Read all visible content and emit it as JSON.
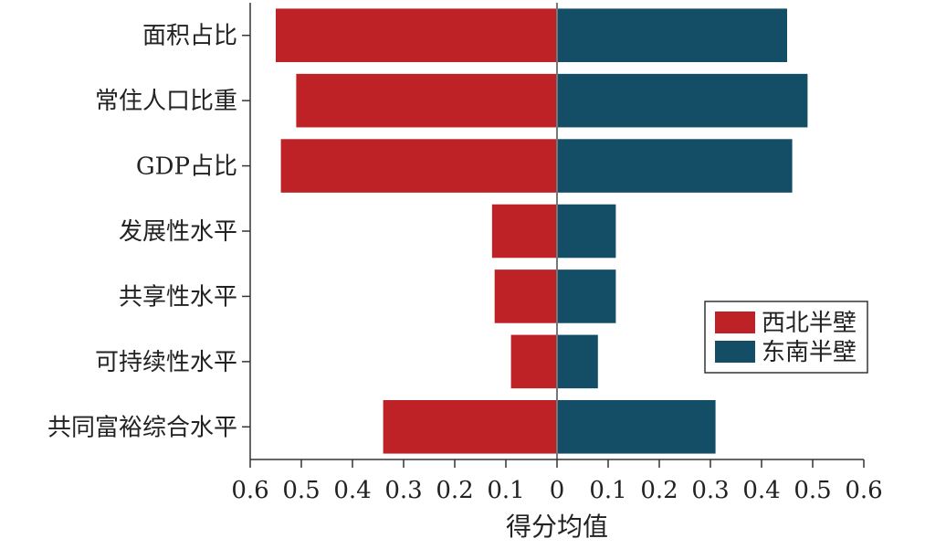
{
  "chart_data": {
    "type": "bar",
    "orientation": "horizontal-diverging",
    "categories": [
      "面积占比",
      "常住人口比重",
      "GDP占比",
      "发展性水平",
      "共享性水平",
      "可持续性水平",
      "共同富裕综合水平"
    ],
    "series": [
      {
        "name": "西北半壁",
        "side": "left",
        "color": "#be2126",
        "values": [
          0.55,
          0.51,
          0.54,
          0.127,
          0.122,
          0.09,
          0.34
        ]
      },
      {
        "name": "东南半壁",
        "side": "right",
        "color": "#134e66",
        "values": [
          0.45,
          0.49,
          0.46,
          0.115,
          0.115,
          0.08,
          0.31
        ]
      }
    ],
    "xlabel": "得分均值",
    "xlim": [
      -0.6,
      0.6
    ],
    "tick_labels": [
      "0.6",
      "0.5",
      "0.4",
      "0.3",
      "0.2",
      "0.1",
      "0",
      "0.1",
      "0.2",
      "0.3",
      "0.4",
      "0.5",
      "0.6"
    ],
    "legend_position": "right",
    "grid": false
  }
}
